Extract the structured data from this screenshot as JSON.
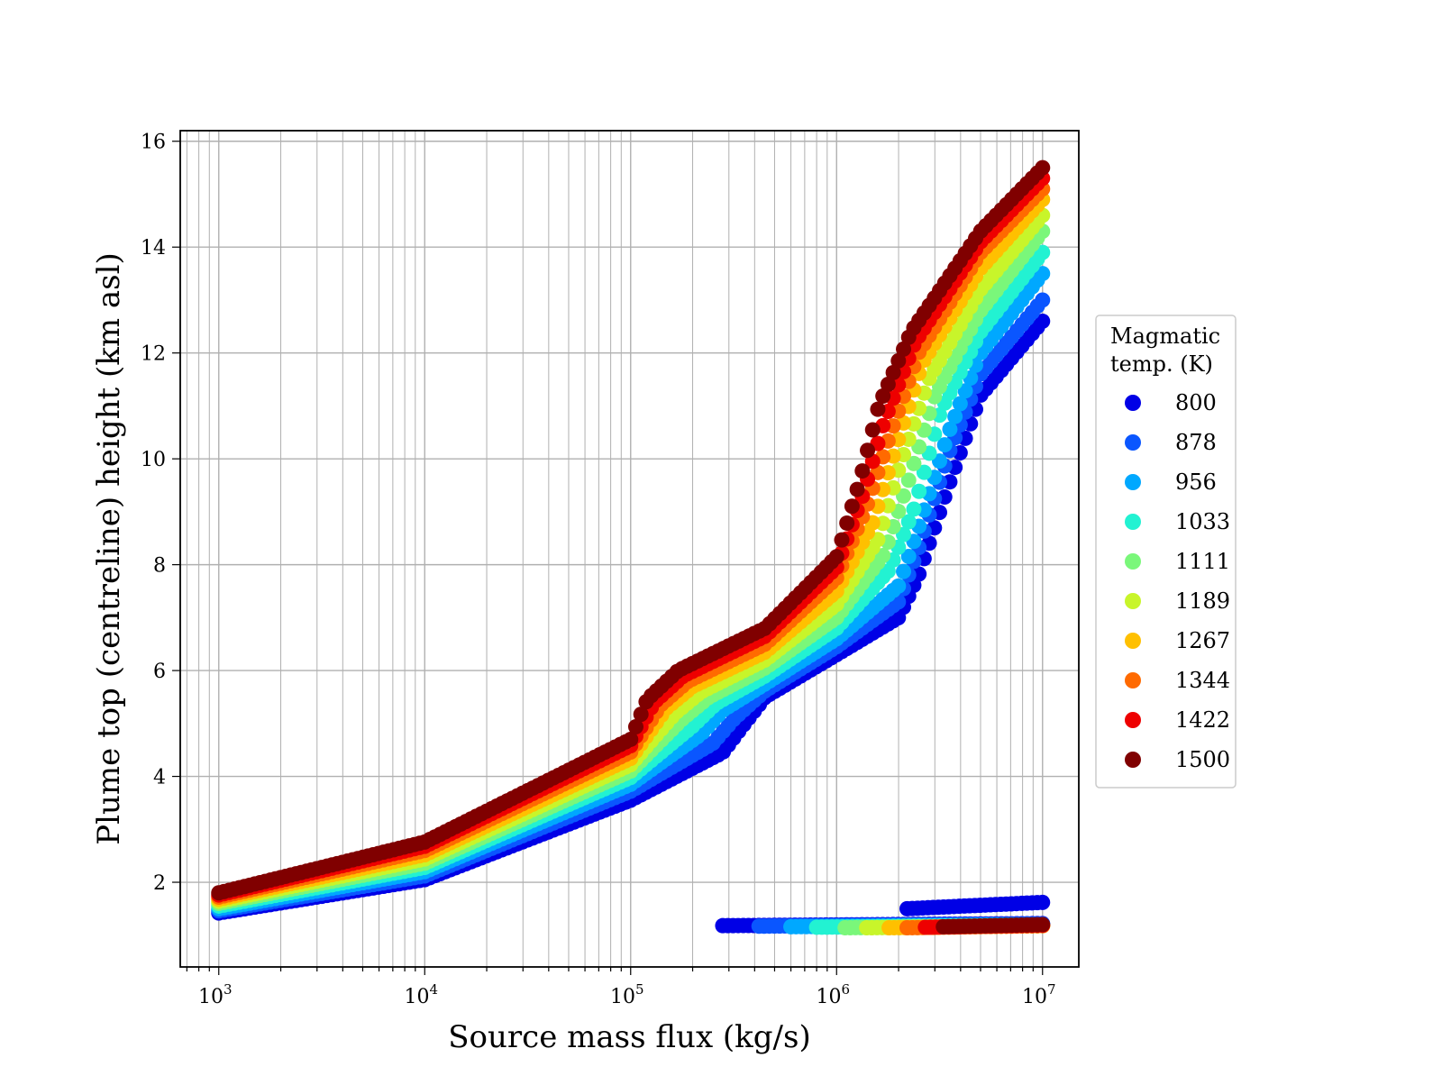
{
  "chart_data": {
    "type": "scatter",
    "title": "",
    "xlabel": "Source mass flux (kg/s)",
    "ylabel": "Plume top (centreline) height (km asl)",
    "xscale": "log",
    "xlim": [
      650,
      15000000
    ],
    "ylim": [
      0.4,
      16.2
    ],
    "x_ticks": [
      {
        "value": 1000,
        "base": "10",
        "exp": "3"
      },
      {
        "value": 10000,
        "base": "10",
        "exp": "4"
      },
      {
        "value": 100000,
        "base": "10",
        "exp": "5"
      },
      {
        "value": 1000000,
        "base": "10",
        "exp": "6"
      },
      {
        "value": 10000000,
        "base": "10",
        "exp": "7"
      }
    ],
    "y_ticks": [
      2,
      4,
      6,
      8,
      10,
      12,
      14,
      16
    ],
    "grid": true,
    "legend": {
      "title_lines": [
        "Magmatic",
        "temp. (K)"
      ],
      "placement": "outside-right"
    },
    "series": [
      {
        "name": "800",
        "color": "#0000e6",
        "upper": [
          [
            1000,
            1.42
          ],
          [
            10000,
            2.05
          ],
          [
            100000,
            3.55
          ],
          [
            280000,
            4.45
          ],
          [
            350000,
            4.95
          ],
          [
            450000,
            5.5
          ],
          [
            1000000,
            6.3
          ],
          [
            2000000,
            7.0
          ],
          [
            2500000,
            7.8
          ],
          [
            3500000,
            9.5
          ],
          [
            5000000,
            11.2
          ],
          [
            10000000,
            12.6
          ]
        ],
        "lower": [
          [
            280000,
            1.18
          ],
          [
            10000000,
            1.22
          ]
        ],
        "lower_start_high": [
          [
            2200000,
            1.5
          ],
          [
            10000000,
            1.62
          ]
        ]
      },
      {
        "name": "878",
        "color": "#0a56ff",
        "upper": [
          [
            1000,
            1.46
          ],
          [
            10000,
            2.12
          ],
          [
            100000,
            3.72
          ],
          [
            250000,
            4.62
          ],
          [
            320000,
            5.1
          ],
          [
            450000,
            5.62
          ],
          [
            1000000,
            6.45
          ],
          [
            2000000,
            7.3
          ],
          [
            2500000,
            8.3
          ],
          [
            3500000,
            10.1
          ],
          [
            5000000,
            11.6
          ],
          [
            10000000,
            13.0
          ]
        ],
        "lower": [
          [
            420000,
            1.17
          ],
          [
            10000000,
            1.21
          ]
        ]
      },
      {
        "name": "956",
        "color": "#00a8ff",
        "upper": [
          [
            1000,
            1.5
          ],
          [
            10000,
            2.2
          ],
          [
            100000,
            3.85
          ],
          [
            220000,
            4.8
          ],
          [
            280000,
            5.25
          ],
          [
            450000,
            5.75
          ],
          [
            1000000,
            6.6
          ],
          [
            2000000,
            7.6
          ],
          [
            2500000,
            8.7
          ],
          [
            3500000,
            10.5
          ],
          [
            5000000,
            12.0
          ],
          [
            10000000,
            13.5
          ]
        ],
        "lower": [
          [
            600000,
            1.16
          ],
          [
            10000000,
            1.2
          ]
        ]
      },
      {
        "name": "1033",
        "color": "#22f2d2",
        "upper": [
          [
            1000,
            1.55
          ],
          [
            10000,
            2.28
          ],
          [
            100000,
            3.98
          ],
          [
            200000,
            4.95
          ],
          [
            260000,
            5.38
          ],
          [
            450000,
            5.9
          ],
          [
            1000000,
            6.8
          ],
          [
            1800000,
            7.9
          ],
          [
            2400000,
            9.1
          ],
          [
            3200000,
            10.9
          ],
          [
            5000000,
            12.4
          ],
          [
            10000000,
            13.9
          ]
        ],
        "lower": [
          [
            800000,
            1.15
          ],
          [
            10000000,
            1.19
          ]
        ]
      },
      {
        "name": "1111",
        "color": "#7af77a",
        "upper": [
          [
            1000,
            1.6
          ],
          [
            10000,
            2.36
          ],
          [
            100000,
            4.1
          ],
          [
            180000,
            5.1
          ],
          [
            240000,
            5.5
          ],
          [
            450000,
            6.05
          ],
          [
            1000000,
            7.0
          ],
          [
            1700000,
            8.2
          ],
          [
            2200000,
            9.5
          ],
          [
            3000000,
            11.2
          ],
          [
            5000000,
            12.8
          ],
          [
            10000000,
            14.3
          ]
        ],
        "lower": [
          [
            1100000,
            1.14
          ],
          [
            10000000,
            1.18
          ]
        ]
      },
      {
        "name": "1189",
        "color": "#c8f52a",
        "upper": [
          [
            1000,
            1.64
          ],
          [
            10000,
            2.44
          ],
          [
            100000,
            4.22
          ],
          [
            165000,
            5.2
          ],
          [
            220000,
            5.6
          ],
          [
            450000,
            6.2
          ],
          [
            1000000,
            7.25
          ],
          [
            1600000,
            8.5
          ],
          [
            2000000,
            9.8
          ],
          [
            2800000,
            11.5
          ],
          [
            5000000,
            13.2
          ],
          [
            10000000,
            14.6
          ]
        ],
        "lower": [
          [
            1400000,
            1.14
          ],
          [
            10000000,
            1.18
          ]
        ]
      },
      {
        "name": "1267",
        "color": "#ffc000",
        "upper": [
          [
            1000,
            1.68
          ],
          [
            10000,
            2.52
          ],
          [
            100000,
            4.34
          ],
          [
            150000,
            5.3
          ],
          [
            200000,
            5.7
          ],
          [
            450000,
            6.35
          ],
          [
            1000000,
            7.5
          ],
          [
            1500000,
            8.8
          ],
          [
            1900000,
            10.1
          ],
          [
            2600000,
            11.8
          ],
          [
            5000000,
            13.6
          ],
          [
            10000000,
            14.9
          ]
        ],
        "lower": [
          [
            1800000,
            1.14
          ],
          [
            10000000,
            1.18
          ]
        ]
      },
      {
        "name": "1344",
        "color": "#ff6a00",
        "upper": [
          [
            1000,
            1.72
          ],
          [
            10000,
            2.6
          ],
          [
            100000,
            4.46
          ],
          [
            140000,
            5.35
          ],
          [
            190000,
            5.8
          ],
          [
            450000,
            6.5
          ],
          [
            1000000,
            7.75
          ],
          [
            1400000,
            9.1
          ],
          [
            1800000,
            10.4
          ],
          [
            2500000,
            12.0
          ],
          [
            5000000,
            13.9
          ],
          [
            10000000,
            15.1
          ]
        ],
        "lower": [
          [
            2200000,
            1.14
          ],
          [
            10000000,
            1.18
          ]
        ]
      },
      {
        "name": "1422",
        "color": "#ee0000",
        "upper": [
          [
            1000,
            1.76
          ],
          [
            10000,
            2.68
          ],
          [
            100000,
            4.58
          ],
          [
            130000,
            5.4
          ],
          [
            180000,
            5.9
          ],
          [
            450000,
            6.65
          ],
          [
            1000000,
            7.95
          ],
          [
            1350000,
            9.35
          ],
          [
            1700000,
            10.7
          ],
          [
            2400000,
            12.2
          ],
          [
            5000000,
            14.1
          ],
          [
            10000000,
            15.3
          ]
        ],
        "lower": [
          [
            2700000,
            1.15
          ],
          [
            10000000,
            1.19
          ]
        ]
      },
      {
        "name": "1500",
        "color": "#800000",
        "upper": [
          [
            1000,
            1.8
          ],
          [
            10000,
            2.76
          ],
          [
            100000,
            4.7
          ],
          [
            120000,
            5.45
          ],
          [
            170000,
            6.0
          ],
          [
            450000,
            6.8
          ],
          [
            1000000,
            8.15
          ],
          [
            1300000,
            9.6
          ],
          [
            1600000,
            11.0
          ],
          [
            2300000,
            12.4
          ],
          [
            5000000,
            14.3
          ],
          [
            10000000,
            15.5
          ]
        ],
        "lower": [
          [
            3300000,
            1.16
          ],
          [
            10000000,
            1.2
          ]
        ]
      }
    ]
  }
}
